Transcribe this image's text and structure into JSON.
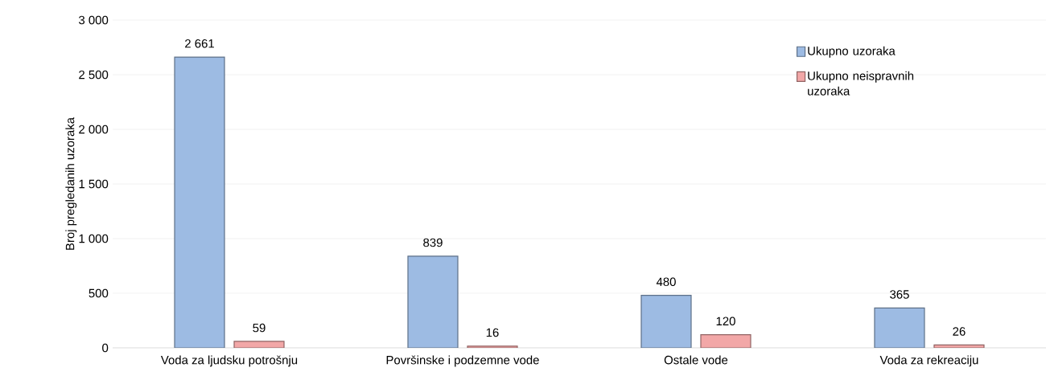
{
  "chart_data": {
    "type": "bar",
    "ylabel": "Broj pregledanih uzoraka",
    "categories": [
      "Voda za ljudsku potrošnju",
      "Površinske i podzemne vode",
      "Ostale vode",
      "Voda za rekreaciju"
    ],
    "series": [
      {
        "name": "Ukupno uzoraka",
        "color": "#9dbbe3",
        "values": [
          2661,
          839,
          480,
          365
        ],
        "value_labels": [
          "2 661",
          "839",
          "480",
          "365"
        ]
      },
      {
        "name": "Ukupno neispravnih uzoraka",
        "color": "#f2a7a7",
        "values": [
          59,
          16,
          120,
          26
        ],
        "value_labels": [
          "59",
          "16",
          "120",
          "26"
        ]
      }
    ],
    "ylim": [
      0,
      3000
    ],
    "yticks": [
      0,
      500,
      {
        "value": 1000,
        "label": "1 000"
      },
      {
        "value": 1500,
        "label": "1 500"
      },
      {
        "value": 2000,
        "label": "2 000"
      },
      {
        "value": 2500,
        "label": "2 500"
      },
      {
        "value": 3000,
        "label": "3 000"
      }
    ],
    "grid": "y",
    "legend": "top right"
  }
}
